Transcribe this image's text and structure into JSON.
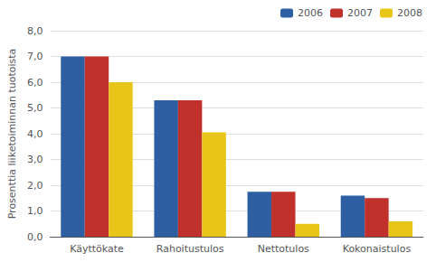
{
  "chart_data": {
    "type": "bar",
    "categories": [
      "Käyttökate",
      "Rahoitustulos",
      "Nettotulos",
      "Kokonaistulos"
    ],
    "series": [
      {
        "name": "2006",
        "color": "#2E5FA3",
        "values": [
          7.0,
          5.3,
          1.75,
          1.6
        ]
      },
      {
        "name": "2007",
        "color": "#C0312B",
        "values": [
          7.0,
          5.3,
          1.75,
          1.5
        ]
      },
      {
        "name": "2008",
        "color": "#E8C619",
        "values": [
          6.0,
          4.05,
          0.5,
          0.6
        ]
      }
    ],
    "ylabel": "Prosenttia liiketoiminnan tuotoista",
    "ylim": [
      0,
      8.0
    ],
    "yticks": [
      {
        "value": 0.0,
        "label": "0,0"
      },
      {
        "value": 1.0,
        "label": "1,0"
      },
      {
        "value": 2.0,
        "label": "2,0"
      },
      {
        "value": 3.0,
        "label": "3,0"
      },
      {
        "value": 4.0,
        "label": "4,0"
      },
      {
        "value": 5.0,
        "label": "5,0"
      },
      {
        "value": 6.0,
        "label": "6,0"
      },
      {
        "value": 7.0,
        "label": "7,0"
      },
      {
        "value": 8.0,
        "label": "8,0"
      }
    ],
    "grid": true,
    "legend": "upper right"
  }
}
